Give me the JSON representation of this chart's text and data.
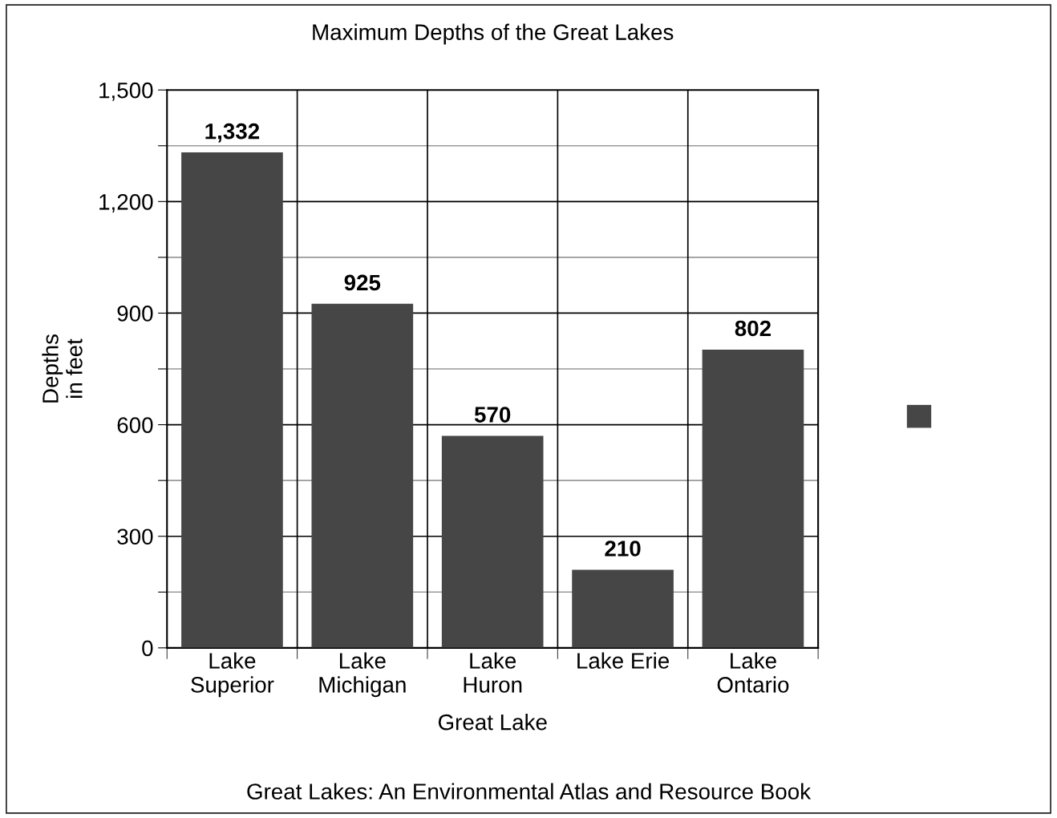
{
  "chart_data": {
    "type": "bar",
    "title": "Maximum Depths of the Great Lakes",
    "xlabel": "Great Lake",
    "ylabel": "Depths\nin feet",
    "categories": [
      "Lake\nSuperior",
      "Lake\nMichigan",
      "Lake\nHuron",
      "Lake Erie",
      "Lake\nOntario"
    ],
    "values": [
      1332,
      925,
      570,
      210,
      802
    ],
    "color": "#464646",
    "value_labels": [
      "1,332",
      "925",
      "570",
      "210",
      "802"
    ],
    "ylim": [
      0,
      1500
    ],
    "yticks": [
      0,
      {
        "value": 150,
        "label": null
      },
      300,
      {
        "value": 450,
        "label": null
      },
      600,
      {
        "value": 750,
        "label": null
      },
      900,
      {
        "value": 1050,
        "label": null
      },
      {
        "value": 1200,
        "label": "1,200"
      },
      {
        "value": 1350,
        "label": null
      },
      {
        "value": 1500,
        "label": "1,500"
      }
    ],
    "grid": true,
    "annotations": [
      "Great Lakes: An Environmental Atlas and Resource Book"
    ]
  }
}
